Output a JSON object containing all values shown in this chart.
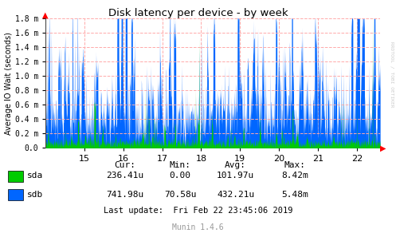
{
  "title": "Disk latency per device - by week",
  "ylabel": "Average IO Wait (seconds)",
  "watermark": "RRDTOOL / TOBI OETIKER",
  "footer": "Munin 1.4.6",
  "last_update": "Last update:  Fri Feb 22 23:45:06 2019",
  "xmin": 14.0,
  "xmax": 22.6,
  "ymin": 0.0,
  "ymax": 0.0018,
  "yticks": [
    0.0,
    0.0002,
    0.0004,
    0.0006,
    0.0008,
    0.001,
    0.0012,
    0.0014,
    0.0016,
    0.0018
  ],
  "ytick_labels": [
    "0.0",
    "0.2 m",
    "0.4 m",
    "0.6 m",
    "0.8 m",
    "1.0 m",
    "1.2 m",
    "1.4 m",
    "1.6 m",
    "1.8 m"
  ],
  "xticks": [
    15,
    16,
    17,
    18,
    19,
    20,
    21,
    22
  ],
  "xtick_labels": [
    "15",
    "16",
    "17",
    "18",
    "19",
    "20",
    "21",
    "22"
  ],
  "vlines": [
    15,
    16,
    17,
    18,
    19,
    20,
    21,
    22
  ],
  "bg_color": "#FFFFFF",
  "plot_bg_color": "#FFFFFF",
  "grid_color": "#FFAAAA",
  "sda_color": "#00CC00",
  "sdb_color": "#0066FF",
  "stats": {
    "headers": [
      "Cur:",
      "Min:",
      "Avg:",
      "Max:"
    ],
    "sda": [
      "236.41u",
      "0.00",
      "101.97u",
      "8.42m"
    ],
    "sdb": [
      "741.98u",
      "70.58u",
      "432.21u",
      "5.48m"
    ]
  },
  "n_points": 1800,
  "seed": 42
}
